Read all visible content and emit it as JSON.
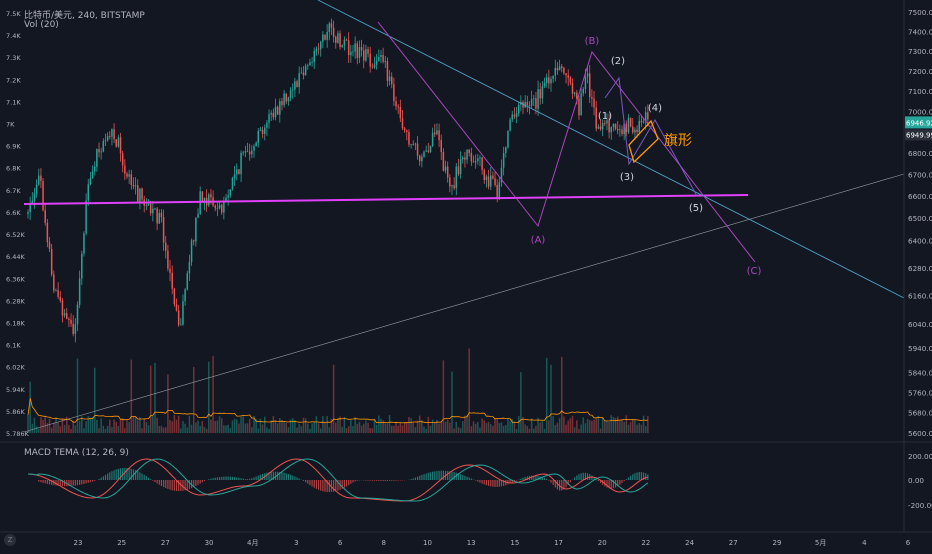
{
  "header": {
    "symbol_line": "比特币/美元, 240, BITSTAMP",
    "volume_label": "Vol (20)",
    "macd_label": "MACD TEMA (12, 26, 9)"
  },
  "chart_data": {
    "type": "candlestick",
    "symbol": "比特币/美元",
    "interval": "240",
    "exchange": "BITSTAMP",
    "price_axis": {
      "range": [
        5600,
        7500
      ],
      "scale": "log",
      "labels": [
        "7500.00",
        "7400.00",
        "7300.00",
        "7200.00",
        "7100.00",
        "7000.00",
        "6900.00",
        "6800.00",
        "6700.00",
        "6600.00",
        "6500.00",
        "6400.00",
        "6280.00",
        "6160.00",
        "6040.00",
        "5940.00",
        "5840.00",
        "5760.00",
        "5680.00",
        "5600.00"
      ]
    },
    "left_axis_labels": [
      "7.5K",
      "7.4K",
      "7.3K",
      "7.2K",
      "7.1K",
      "7K",
      "6.9K",
      "6.8K",
      "6.7K",
      "6.6K",
      "6.52K",
      "6.44K",
      "6.36K",
      "6.28K",
      "6.18K",
      "6.1K",
      "6.02K",
      "5.94K",
      "5.86K",
      "5.786K"
    ],
    "last_price": "6946.92",
    "last_price_sub": "6949.99",
    "date_labels": [
      "23",
      "25",
      "27",
      "30",
      "4月",
      "3",
      "6",
      "8",
      "10",
      "13",
      "15",
      "17",
      "20",
      "22",
      "24",
      "27",
      "29",
      "5月",
      "4",
      "6"
    ],
    "volume_label": "Vol (20)",
    "macd": {
      "label": "MACD TEMA (12, 26, 9)",
      "axis_labels": [
        "200.00",
        "0.00",
        "-200.00"
      ]
    },
    "annotations": {
      "wave_labels": [
        "(B)",
        "(A)",
        "(C)",
        "(1)",
        "(2)",
        "(3)",
        "(4)",
        "(5)"
      ],
      "flag_label": "旗形"
    },
    "colors": {
      "up": "#26a69a",
      "down": "#ef5350",
      "background": "#131722",
      "support_line": "#e040fb",
      "trend_line": "#4fa3c7",
      "wave_abc": "#ab47bc",
      "flag": "#ff9800",
      "macd_line": "#ef5350",
      "signal_line": "#26a69a",
      "volume_ma": "#ff9800"
    },
    "grid": false
  }
}
